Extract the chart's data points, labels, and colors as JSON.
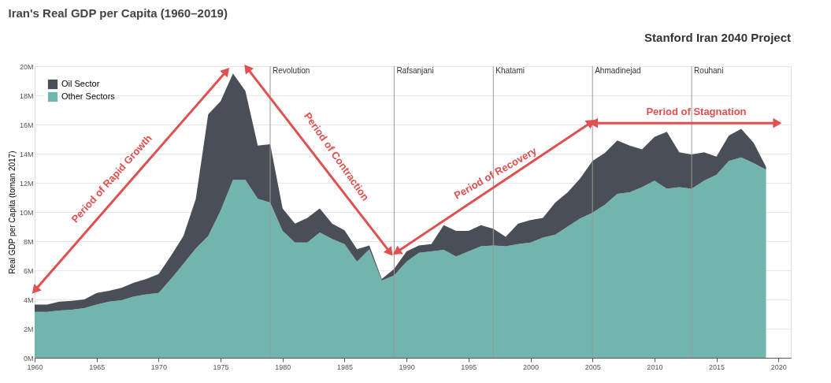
{
  "chart_data": {
    "type": "area",
    "stacked": true,
    "title": "Iran's Real GDP per Capita (1960–2019)",
    "ylabel": "Real GDP per Capita (toman 2017)",
    "x": [
      1960,
      1961,
      1962,
      1963,
      1964,
      1965,
      1966,
      1967,
      1968,
      1969,
      1970,
      1971,
      1972,
      1973,
      1974,
      1975,
      1976,
      1977,
      1978,
      1979,
      1980,
      1981,
      1982,
      1983,
      1984,
      1985,
      1986,
      1987,
      1988,
      1989,
      1990,
      1991,
      1992,
      1993,
      1994,
      1995,
      1996,
      1997,
      1998,
      1999,
      2000,
      2001,
      2002,
      2003,
      2004,
      2005,
      2006,
      2007,
      2008,
      2009,
      2010,
      2011,
      2012,
      2013,
      2014,
      2015,
      2016,
      2017,
      2018,
      2019
    ],
    "series": [
      {
        "name": "Other Sectors",
        "color": "#72b5ae",
        "values": [
          3.15,
          3.15,
          3.25,
          3.3,
          3.4,
          3.65,
          3.85,
          3.95,
          4.2,
          4.35,
          4.45,
          5.4,
          6.45,
          7.5,
          8.35,
          10.1,
          12.2,
          12.2,
          10.9,
          10.65,
          8.7,
          7.9,
          7.9,
          8.6,
          8.15,
          7.8,
          6.6,
          7.45,
          5.3,
          5.65,
          6.6,
          7.2,
          7.3,
          7.4,
          6.95,
          7.3,
          7.65,
          7.7,
          7.65,
          7.8,
          7.9,
          8.25,
          8.45,
          9.0,
          9.55,
          9.95,
          10.5,
          11.25,
          11.35,
          11.7,
          12.15,
          11.6,
          11.7,
          11.6,
          12.15,
          12.55,
          13.5,
          13.75,
          13.35,
          12.9
        ]
      },
      {
        "name": "Oil Sector",
        "color": "#4a4f57",
        "values": [
          0.5,
          0.5,
          0.6,
          0.6,
          0.6,
          0.8,
          0.75,
          0.85,
          0.95,
          1.05,
          1.3,
          1.6,
          1.9,
          3.4,
          8.35,
          7.5,
          7.3,
          6.1,
          3.65,
          4.0,
          1.55,
          1.3,
          1.7,
          1.65,
          1.05,
          0.95,
          0.85,
          0.25,
          0.1,
          0.45,
          0.7,
          0.5,
          0.5,
          1.7,
          1.75,
          1.4,
          1.45,
          1.15,
          0.65,
          1.4,
          1.55,
          1.35,
          2.2,
          2.35,
          2.75,
          3.55,
          3.55,
          3.65,
          3.2,
          2.6,
          3.0,
          3.9,
          2.4,
          2.35,
          1.95,
          1.25,
          1.75,
          1.95,
          1.4,
          0.2
        ]
      }
    ],
    "xlim": [
      1960,
      2021
    ],
    "xticks": [
      1960,
      1965,
      1970,
      1975,
      1980,
      1985,
      1990,
      1995,
      2000,
      2005,
      2010,
      2015,
      2020
    ],
    "ylim": [
      0,
      20
    ],
    "yticks": [
      {
        "value": 0,
        "label": "0M"
      },
      {
        "value": 2,
        "label": "2M"
      },
      {
        "value": 4,
        "label": "4M"
      },
      {
        "value": 6,
        "label": "6M"
      },
      {
        "value": 8,
        "label": "8M"
      },
      {
        "value": 10,
        "label": "10M"
      },
      {
        "value": 12,
        "label": "12M"
      },
      {
        "value": 14,
        "label": "14M"
      },
      {
        "value": 16,
        "label": "16M"
      },
      {
        "value": 18,
        "label": "18M"
      },
      {
        "value": 20,
        "label": "20M"
      }
    ],
    "ref_lines": [
      {
        "axis": "x",
        "value": 1979,
        "label": "Revolution",
        "color": "#999999"
      },
      {
        "axis": "x",
        "value": 1989,
        "label": "Rafsanjani",
        "color": "#999999"
      },
      {
        "axis": "x",
        "value": 1997,
        "label": "Khatami",
        "color": "#999999"
      },
      {
        "axis": "x",
        "value": 2005,
        "label": "Ahmadinejad",
        "color": "#999999"
      },
      {
        "axis": "x",
        "value": 2013,
        "label": "Rouhani",
        "color": "#999999"
      }
    ],
    "annotations": [
      "Period of Rapid Growth",
      "Period of Contraction",
      "Period of Recovery",
      "Period of Stagnation",
      "Stanford Iran 2040 Project"
    ],
    "grid": "y",
    "legend": "top left"
  }
}
